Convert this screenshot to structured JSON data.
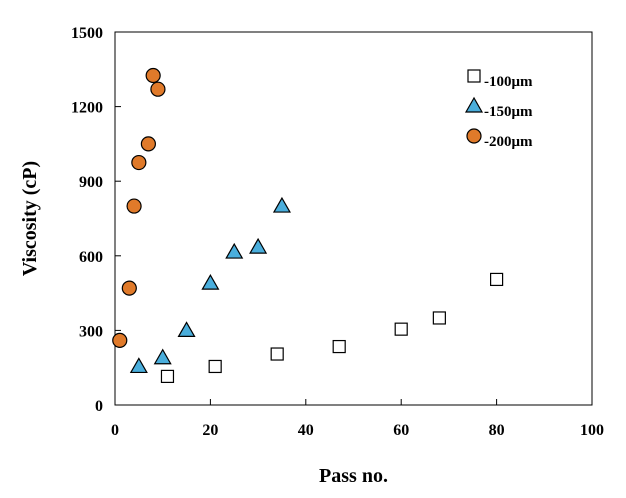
{
  "chart_data": {
    "type": "scatter",
    "title": "",
    "xlabel": "Pass no.",
    "ylabel": "Viscosity  (cP)",
    "xlim": [
      0,
      100
    ],
    "ylim": [
      0,
      1500
    ],
    "xticks": [
      0,
      20,
      40,
      60,
      80,
      100
    ],
    "yticks": [
      0,
      300,
      600,
      900,
      1200,
      1500
    ],
    "grid": false,
    "legend_position": "top-right",
    "series": [
      {
        "name": "-100μm",
        "marker": "square",
        "color": "#ffffff",
        "edge": "#000000",
        "x": [
          11,
          21,
          34,
          47,
          60,
          68,
          80
        ],
        "y": [
          115,
          155,
          205,
          235,
          305,
          350,
          505
        ]
      },
      {
        "name": "-150μm",
        "marker": "triangle",
        "color": "#4aaedc",
        "edge": "#000000",
        "x": [
          5,
          10,
          15,
          20,
          25,
          30,
          35
        ],
        "y": [
          155,
          190,
          300,
          490,
          615,
          635,
          800
        ]
      },
      {
        "name": "-200μm",
        "marker": "circle",
        "color": "#e07a2a",
        "edge": "#000000",
        "x": [
          1,
          3,
          4,
          5,
          7,
          8,
          9
        ],
        "y": [
          260,
          470,
          800,
          975,
          1050,
          1325,
          1270
        ]
      }
    ]
  }
}
